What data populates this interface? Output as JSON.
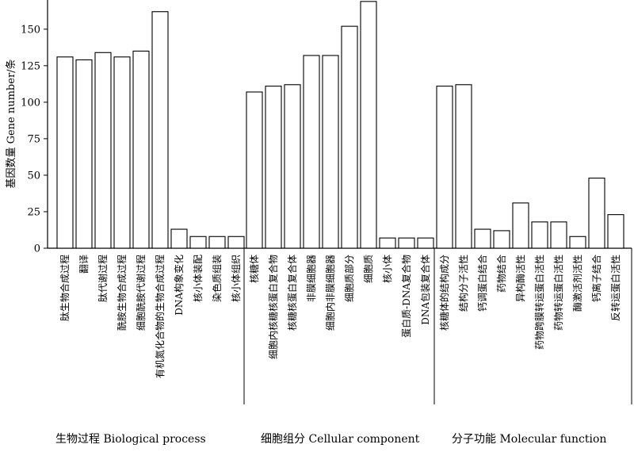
{
  "chart_data": {
    "type": "bar",
    "ylabel": "基因数量 Gene number/条",
    "ylim": [
      0,
      170
    ],
    "yticks": [
      0,
      25,
      50,
      75,
      100,
      125,
      150
    ],
    "grid": false,
    "legend": "none",
    "bar_fill": "#ffffff",
    "bar_stroke": "#000000",
    "groups": [
      {
        "name": "生物过程  Biological process",
        "categories": [
          "肽生物合成过程",
          "翻译",
          "肽代谢过程",
          "酰胺生物合成过程",
          "细胞酰胺代谢过程",
          "有机氮化合物的生物合成过程",
          "DNA构象变化",
          "核小体装配",
          "染色质组装",
          "核小体组织"
        ],
        "values": [
          131,
          129,
          134,
          131,
          135,
          162,
          13,
          8,
          8,
          8
        ]
      },
      {
        "name": "细胞组分  Cellular component",
        "categories": [
          "核糖体",
          "细胞内核糖核蛋白复合物",
          "核糖核蛋白复合体",
          "非膜细胞器",
          "细胞内非膜细胞器",
          "细胞质部分",
          "细胞质",
          "核小体",
          "蛋白质-DNA复合物",
          "DNA包装复合体"
        ],
        "values": [
          107,
          111,
          112,
          132,
          132,
          152,
          169,
          7,
          7,
          7
        ]
      },
      {
        "name": "分子功能  Molecular function",
        "categories": [
          "核糖体的结构成分",
          "结构分子活性",
          "钙调蛋白结合",
          "药物结合",
          "异构酶活性",
          "药物跨膜转运蛋白活性",
          "药物转运蛋白活性",
          "酶激活剂活性",
          "钙离子结合",
          "反转运蛋白活性"
        ],
        "values": [
          111,
          112,
          13,
          12,
          31,
          18,
          18,
          8,
          48,
          23
        ]
      }
    ]
  }
}
